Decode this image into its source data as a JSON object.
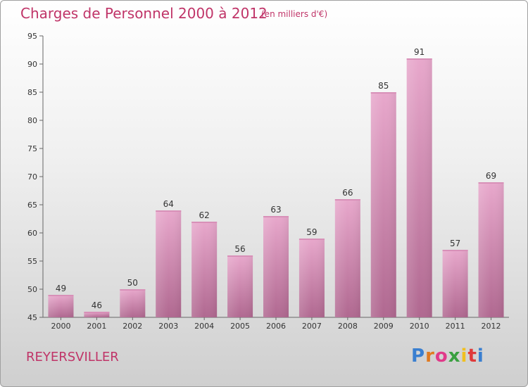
{
  "header": {
    "title": "Charges de Personnel 2000 à 2012",
    "subtitle": "(en milliers d'€)"
  },
  "footer": {
    "commune": "REYERSVILLER",
    "logo": "Proxiti"
  },
  "colors": {
    "accent": "#c03468",
    "bar_top": "#e8a8cc",
    "bar_bottom": "#b06890"
  },
  "chart_data": {
    "type": "bar",
    "title": "Charges de Personnel 2000 à 2012",
    "subtitle": "(en milliers d'€)",
    "xlabel": "",
    "ylabel": "",
    "categories": [
      "2000",
      "2001",
      "2002",
      "2003",
      "2004",
      "2005",
      "2006",
      "2007",
      "2008",
      "2009",
      "2010",
      "2011",
      "2012"
    ],
    "values": [
      49,
      46,
      50,
      64,
      62,
      56,
      63,
      59,
      66,
      85,
      91,
      57,
      69
    ],
    "ylim": [
      45,
      95
    ],
    "yticks": [
      45,
      50,
      55,
      60,
      65,
      70,
      75,
      80,
      85,
      90,
      95
    ],
    "grid": false,
    "data_labels": true
  }
}
